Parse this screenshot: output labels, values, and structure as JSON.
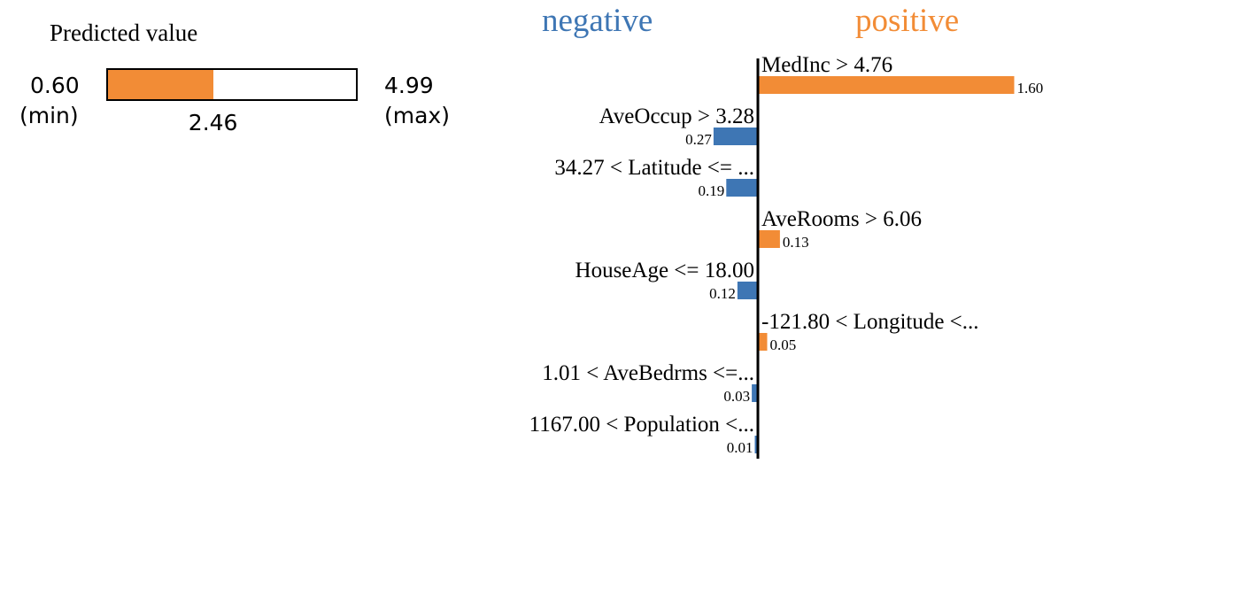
{
  "prediction": {
    "title": "Predicted value",
    "min_value": "0.60",
    "min_label": "(min)",
    "max_value": "4.99",
    "max_label": "(max)",
    "value_text": "2.46",
    "min": 0.6,
    "max": 4.99,
    "value": 2.46,
    "fill_color": "#f28c36"
  },
  "chart_data": {
    "type": "bar",
    "orientation": "horizontal",
    "negative_label": "negative",
    "positive_label": "positive",
    "colors": {
      "negative": "#3e76b4",
      "positive": "#f28c36"
    },
    "features": [
      {
        "label": "MedInc > 4.76",
        "value": 1.6,
        "value_text": "1.60",
        "direction": "positive"
      },
      {
        "label": "AveOccup > 3.28",
        "value": 0.27,
        "value_text": "0.27",
        "direction": "negative"
      },
      {
        "label": "34.27 < Latitude <= ...",
        "value": 0.19,
        "value_text": "0.19",
        "direction": "negative"
      },
      {
        "label": "AveRooms > 6.06",
        "value": 0.13,
        "value_text": "0.13",
        "direction": "positive"
      },
      {
        "label": "HouseAge <= 18.00",
        "value": 0.12,
        "value_text": "0.12",
        "direction": "negative"
      },
      {
        "label": "-121.80 < Longitude <...",
        "value": 0.05,
        "value_text": "0.05",
        "direction": "positive"
      },
      {
        "label": "1.01 < AveBedrms <=...",
        "value": 0.03,
        "value_text": "0.03",
        "direction": "negative"
      },
      {
        "label": "1167.00 < Population <...",
        "value": 0.01,
        "value_text": "0.01",
        "direction": "negative"
      }
    ]
  }
}
